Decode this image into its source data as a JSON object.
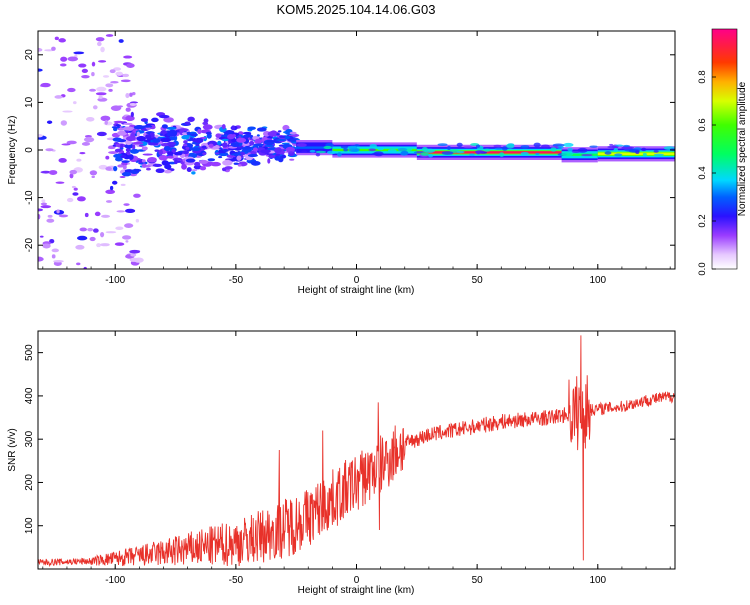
{
  "title": "KOM5.2025.104.14.06.G03",
  "colorbar": {
    "label": "Normalized spectral amplitude",
    "range": [
      0,
      1
    ],
    "ticks": [
      0.0,
      0.2,
      0.4,
      0.6,
      0.8
    ],
    "tick_labels": [
      "0.0",
      "0.2",
      "0.4",
      "0.6",
      "0.8"
    ]
  },
  "chart_data": [
    {
      "type": "heatmap",
      "title": "KOM5.2025.104.14.06.G03",
      "xlabel": "Height of straight line (km)",
      "ylabel": "Frequency (Hz)",
      "xlim": [
        -132,
        132
      ],
      "ylim": [
        -25,
        25
      ],
      "xticks": [
        -100,
        -50,
        0,
        50,
        100
      ],
      "xtick_labels": [
        "-100",
        "-50",
        "0",
        "50",
        "100"
      ],
      "yticks": [
        -20,
        -10,
        0,
        10,
        20
      ],
      "ytick_labels": [
        "-20",
        "-10",
        "0",
        "10",
        "20"
      ],
      "zlabel": "Normalized spectral amplitude",
      "zlim": [
        0,
        1
      ],
      "ridge": {
        "description": "Strong narrow spectral line near 0 Hz from about -25 km to the right edge",
        "frequency_hz": -0.5,
        "segments": [
          {
            "x_start": -25,
            "x_end": -10,
            "frequency_hz": 0.5,
            "amplitude": 0.3
          },
          {
            "x_start": -10,
            "x_end": 25,
            "frequency_hz": 0.0,
            "amplitude": 0.6
          },
          {
            "x_start": 25,
            "x_end": 85,
            "frequency_hz": -0.5,
            "amplitude": 0.95
          },
          {
            "x_start": 85,
            "x_end": 100,
            "frequency_hz": -1.0,
            "amplitude": 0.5
          },
          {
            "x_start": 100,
            "x_end": 132,
            "frequency_hz": -0.8,
            "amplitude": 0.7
          }
        ]
      },
      "noise_regions": [
        {
          "x_range": [
            -132,
            -100
          ],
          "freq_range": [
            -25,
            25
          ],
          "amplitude": 0.1
        },
        {
          "x_range": [
            -100,
            -25
          ],
          "freq_range": [
            -8,
            8
          ],
          "amplitude": 0.22
        }
      ]
    },
    {
      "type": "line",
      "xlabel": "Height of straight line (km)",
      "ylabel": "SNR (v/v)",
      "xlim": [
        -132,
        132
      ],
      "ylim": [
        0,
        550
      ],
      "xticks": [
        -100,
        -50,
        0,
        50,
        100
      ],
      "xtick_labels": [
        "-100",
        "-50",
        "0",
        "50",
        "100"
      ],
      "yticks": [
        100,
        200,
        300,
        400,
        500
      ],
      "ytick_labels": [
        "100",
        "200",
        "300",
        "400",
        "500"
      ],
      "color": "#e8312a",
      "trend": {
        "x": [
          -132,
          -110,
          -90,
          -70,
          -50,
          -40,
          -30,
          -20,
          -10,
          0,
          10,
          20,
          30,
          40,
          50,
          60,
          70,
          80,
          90,
          100,
          110,
          120,
          132
        ],
        "y": [
          15,
          18,
          30,
          45,
          60,
          75,
          95,
          120,
          160,
          200,
          240,
          290,
          310,
          320,
          330,
          340,
          345,
          350,
          360,
          370,
          375,
          390,
          400
        ]
      },
      "spikes": [
        {
          "x": 93,
          "y": 540
        },
        {
          "x": 94,
          "y": 20
        },
        {
          "x": 9,
          "y": 385
        },
        {
          "x": 9.5,
          "y": 90
        },
        {
          "x": -14,
          "y": 320
        },
        {
          "x": -32,
          "y": 275
        }
      ]
    }
  ]
}
